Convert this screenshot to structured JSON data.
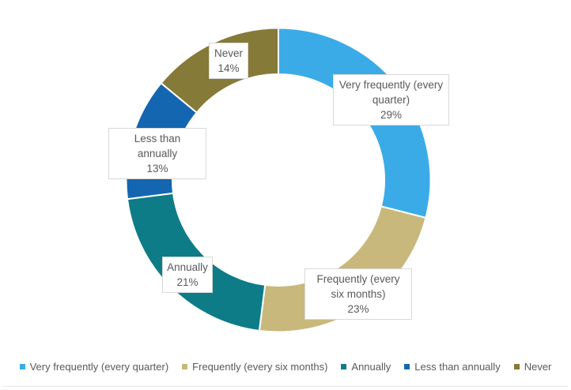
{
  "chart_data": {
    "type": "pie",
    "subtype": "donut",
    "title": "",
    "unit": "%",
    "direction": "clockwise",
    "start_angle_deg": 0,
    "legend_position": "bottom",
    "segments": [
      {
        "name": "Very frequently (every quarter)",
        "value": 29,
        "pct_label": "29%",
        "color": "#3babe8"
      },
      {
        "name": "Frequently (every six months)",
        "value": 23,
        "pct_label": "23%",
        "color": "#c8b87c"
      },
      {
        "name": "Annually",
        "value": 21,
        "pct_label": "21%",
        "color": "#0d7c87"
      },
      {
        "name": "Less than annually",
        "value": 13,
        "pct_label": "13%",
        "color": "#1466b0"
      },
      {
        "name": "Never",
        "value": 14,
        "pct_label": "14%",
        "color": "#867a39"
      }
    ],
    "data_label_text_color": "#595959",
    "data_label_border_color": "#d8d8d8",
    "legend_text_color": "#595959"
  }
}
